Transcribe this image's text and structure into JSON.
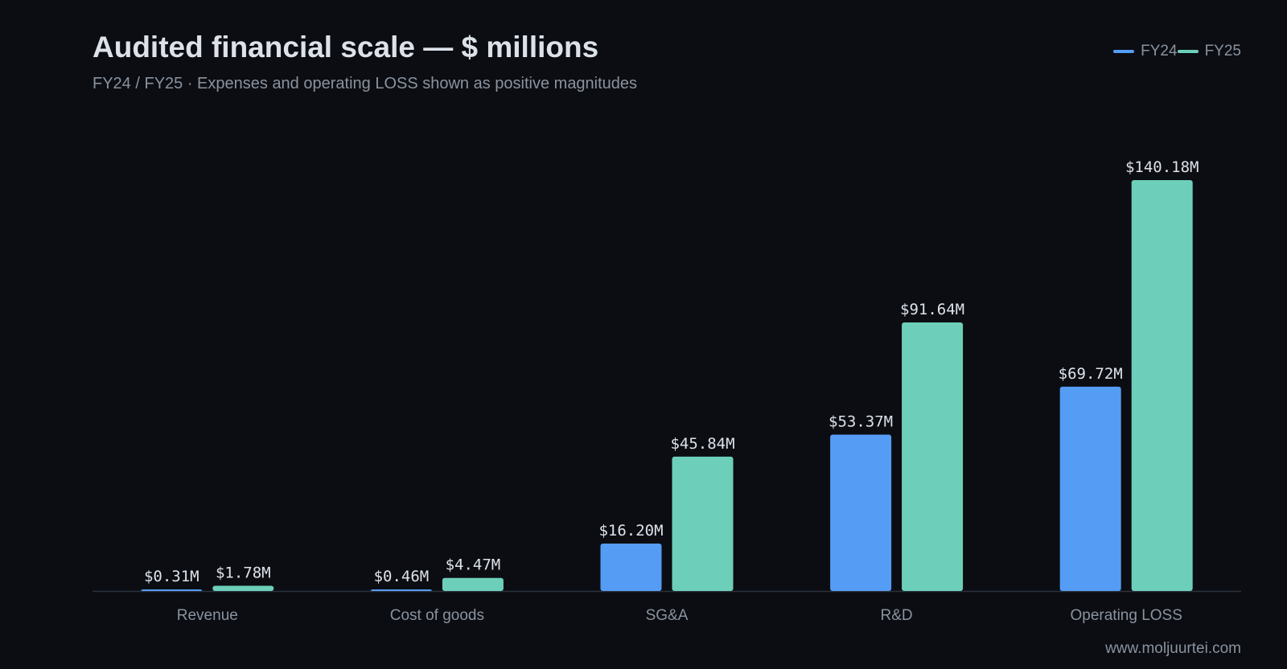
{
  "header": {
    "title": "Audited financial scale — $ millions",
    "subtitle": "FY24 / FY25 · Expenses and operating LOSS shown as positive magnitudes"
  },
  "footer": {
    "source": "www.moljuurtei.com"
  },
  "legend": [
    {
      "label": "FY24",
      "color": "#559cf5"
    },
    {
      "label": "FY25",
      "color": "#6dcfb9"
    }
  ],
  "chart_data": {
    "type": "bar",
    "title": "Audited financial scale — $ millions",
    "subtitle": "FY24 / FY25 · Expenses and operating LOSS shown as positive magnitudes",
    "categories": [
      "Revenue",
      "Cost of goods",
      "SG&A",
      "R&D",
      "Operating LOSS"
    ],
    "series": [
      {
        "name": "FY24",
        "color": "#559cf5",
        "values": [
          0.31,
          0.46,
          16.2,
          53.37,
          69.72
        ],
        "labels": [
          "$0.31M",
          "$0.46M",
          "$16.20M",
          "$53.37M",
          "$69.72M"
        ]
      },
      {
        "name": "FY25",
        "color": "#6dcfb9",
        "values": [
          1.78,
          4.47,
          45.84,
          91.64,
          140.18
        ],
        "labels": [
          "$1.78M",
          "$4.47M",
          "$45.84M",
          "$91.64M",
          "$140.18M"
        ]
      }
    ],
    "ylim": [
      0,
      140.18
    ],
    "grid": false,
    "legend_position": "top-right"
  }
}
